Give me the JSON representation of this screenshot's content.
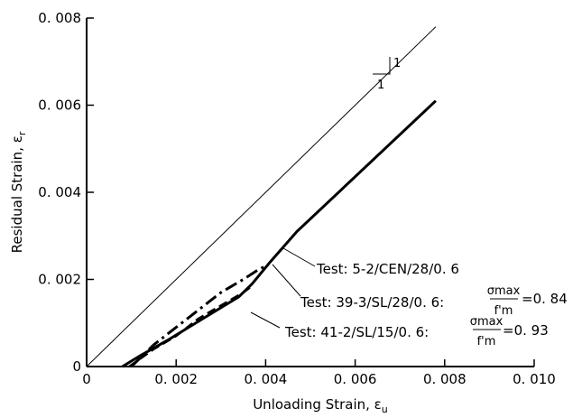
{
  "chart_data": {
    "type": "line",
    "xlabel": "Unloading Strain, ε",
    "xlabel_sub": "u",
    "ylabel": "Residual Strain, ε",
    "ylabel_sub": "r",
    "xlim": [
      0,
      0.01
    ],
    "ylim": [
      0,
      0.008
    ],
    "xticks": [
      "0",
      "0. 002",
      "0. 004",
      "0. 006",
      "0. 008",
      "0. 010"
    ],
    "yticks": [
      "0",
      "0. 002",
      "0. 004",
      "0. 006",
      "0. 008"
    ],
    "grid": false,
    "series": [
      {
        "style": "thin",
        "x": [
          0,
          0.0078
        ],
        "y": [
          0,
          0.0078
        ]
      },
      {
        "name": "Test: 5-2/CEN/28/0.6",
        "style": "thick",
        "x": [
          0.0008,
          0.0012,
          0.0018,
          0.0026,
          0.0034,
          0.0037,
          0.0041,
          0.0047,
          0.0078
        ],
        "y": [
          0,
          0.00025,
          0.0006,
          0.0011,
          0.0016,
          0.0019,
          0.0024,
          0.0031,
          0.0061
        ]
      },
      {
        "name": "Test: 39-3/SL/28/0.6",
        "style": "dashdot",
        "x": [
          0.001,
          0.0015,
          0.002,
          0.0025,
          0.003,
          0.0035,
          0.0038,
          0.00405
        ],
        "y": [
          0,
          0.0005,
          0.0009,
          0.0013,
          0.0017,
          0.002,
          0.0022,
          0.00234
        ]
      },
      {
        "name": "Test: 41-2/SL/15/0.6",
        "style": "dashed",
        "x": [
          0.00095,
          0.0015,
          0.002,
          0.0025,
          0.003,
          0.0035,
          0.0037
        ],
        "y": [
          0,
          0.0004,
          0.0007,
          0.0011,
          0.0014,
          0.0017,
          0.00185
        ]
      }
    ],
    "annotations": {
      "slope_rise": "1",
      "slope_run": "1",
      "test1": "Test: 5-2/CEN/28/0. 6",
      "test2": "Test: 39-3/SL/28/0. 6:",
      "test3": "Test: 41-2/SL/15/0. 6:",
      "frac_num": "σmax",
      "frac_den": "f'm",
      "ratio2": "=0. 84",
      "ratio3": "=0. 93"
    }
  }
}
